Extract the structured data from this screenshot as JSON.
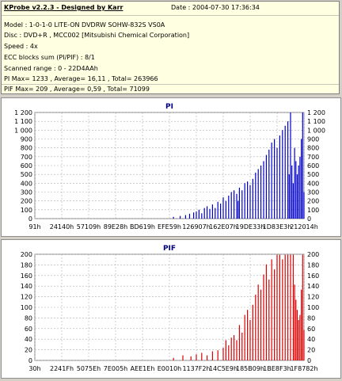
{
  "header": {
    "title": "KProbe v2.2.3 - Designed by Karr",
    "date": "Date : 2004-07-30 17:36:34"
  },
  "info_lines": [
    "Model : 1-0-1-0 LITE-ON DVDRW SOHW-832S  VS0A",
    "Disc : DVD+R , MCC002 [Mitsubishi Chemical Corporation]",
    "Speed : 4x",
    "ECC blocks sum (PI/PIF) : 8/1",
    "Scanned range : 0 - 22D4AAh",
    "PI Max= 1233 , Average= 16,11 , Total= 263966",
    "PIF Max= 209 , Average= 0,59 , Total= 71099"
  ],
  "chart_data": [
    {
      "type": "bar",
      "title": "PI",
      "ylim": [
        0,
        1200
      ],
      "yticks": [
        "0",
        "100",
        "200",
        "300",
        "400",
        "500",
        "600",
        "700",
        "800",
        "900",
        "1 000",
        "1 100",
        "1 200"
      ],
      "xticks": [
        "91h",
        "24140h",
        "57109h",
        "89E28h",
        "BD619h",
        "EFE59h",
        "126907h",
        "162E07h",
        "19DE33h",
        "1D83E3h",
        "212014h"
      ],
      "grid": true,
      "color": "#0000cc",
      "x_frac": [
        0.515,
        0.54,
        0.56,
        0.575,
        0.59,
        0.6,
        0.61,
        0.62,
        0.63,
        0.64,
        0.65,
        0.66,
        0.67,
        0.68,
        0.69,
        0.7,
        0.71,
        0.72,
        0.73,
        0.74,
        0.75,
        0.755,
        0.76,
        0.77,
        0.78,
        0.79,
        0.8,
        0.81,
        0.82,
        0.83,
        0.84,
        0.85,
        0.86,
        0.87,
        0.88,
        0.89,
        0.9,
        0.91,
        0.92,
        0.93,
        0.94,
        0.945,
        0.95,
        0.955,
        0.96,
        0.965,
        0.97,
        0.975,
        0.98,
        0.985,
        0.99,
        0.995,
        1.0
      ],
      "values": [
        20,
        30,
        40,
        55,
        70,
        80,
        100,
        60,
        120,
        140,
        110,
        160,
        120,
        190,
        170,
        240,
        200,
        260,
        300,
        320,
        280,
        200,
        350,
        320,
        400,
        420,
        380,
        450,
        520,
        560,
        600,
        650,
        720,
        780,
        860,
        900,
        800,
        940,
        1000,
        1050,
        1100,
        500,
        1233,
        600,
        400,
        800,
        650,
        500,
        600,
        700,
        900,
        1233,
        300
      ]
    },
    {
      "type": "bar",
      "title": "PIF",
      "ylim": [
        0,
        210
      ],
      "yticks": [
        "0",
        "20",
        "40",
        "60",
        "80",
        "100",
        "120",
        "140",
        "160",
        "180",
        "200"
      ],
      "xticks": [
        "30h",
        "2241Fh",
        "5075Eh",
        "7E005h",
        "AEE1Eh",
        "E0010h",
        "1137F2h",
        "14C5E9h",
        "185B09h",
        "1BE8F3h",
        "1F8782h"
      ],
      "grid": true,
      "color": "#dd0000",
      "x_frac": [
        0.515,
        0.55,
        0.58,
        0.6,
        0.62,
        0.64,
        0.66,
        0.68,
        0.7,
        0.71,
        0.72,
        0.73,
        0.74,
        0.75,
        0.76,
        0.77,
        0.78,
        0.79,
        0.8,
        0.81,
        0.82,
        0.83,
        0.84,
        0.85,
        0.86,
        0.87,
        0.88,
        0.89,
        0.9,
        0.91,
        0.92,
        0.93,
        0.94,
        0.95,
        0.96,
        0.965,
        0.97,
        0.975,
        0.98,
        0.985,
        0.99,
        0.995,
        1.0
      ],
      "values": [
        5,
        10,
        8,
        12,
        15,
        10,
        18,
        20,
        25,
        40,
        30,
        45,
        50,
        40,
        70,
        55,
        90,
        100,
        80,
        110,
        130,
        150,
        140,
        170,
        190,
        160,
        200,
        180,
        209,
        209,
        200,
        209,
        209,
        209,
        209,
        150,
        120,
        100,
        80,
        90,
        140,
        209,
        60
      ]
    }
  ]
}
